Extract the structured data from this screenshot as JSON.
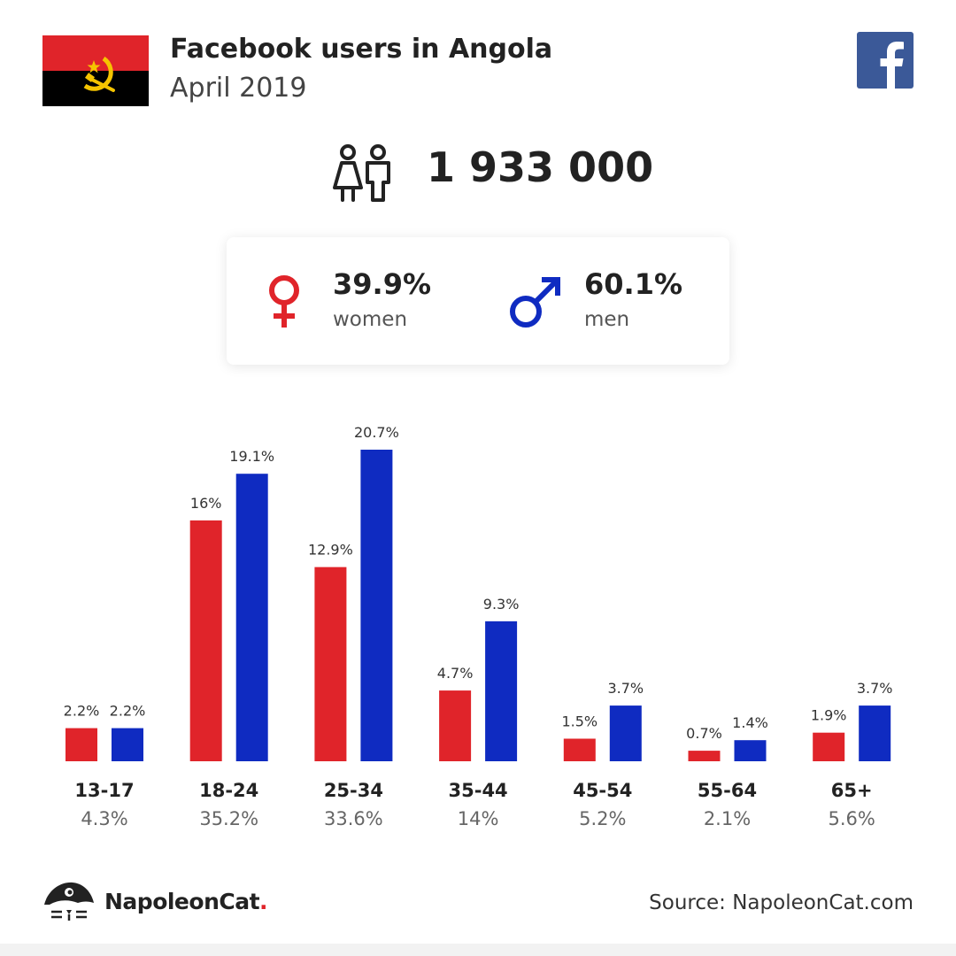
{
  "header": {
    "title": "Facebook users in Angola",
    "subtitle": "April 2019"
  },
  "total": "1 933 000",
  "gender": {
    "women_pct": "39.9%",
    "women_label": "women",
    "men_pct": "60.1%",
    "men_label": "men"
  },
  "colors": {
    "women": "#e0242a",
    "men": "#0f2bc1",
    "facebook": "#3b5998",
    "flag_red": "#e0242a",
    "flag_black": "#000000",
    "flag_emblem": "#f5c400"
  },
  "icons": [
    "angola-flag",
    "facebook-icon",
    "people-icon",
    "female-icon",
    "male-icon",
    "napoleoncat-logo-icon"
  ],
  "chart_data": {
    "type": "bar",
    "categories": [
      "13-17",
      "18-24",
      "25-34",
      "35-44",
      "45-54",
      "55-64",
      "65+"
    ],
    "category_totals": [
      "4.3%",
      "35.2%",
      "33.6%",
      "14%",
      "5.2%",
      "2.1%",
      "5.6%"
    ],
    "series": [
      {
        "name": "women",
        "values": [
          2.2,
          16,
          12.9,
          4.7,
          1.5,
          0.7,
          1.9
        ],
        "labels": [
          "2.2%",
          "16%",
          "12.9%",
          "4.7%",
          "1.5%",
          "0.7%",
          "1.9%"
        ],
        "color": "#e0242a"
      },
      {
        "name": "men",
        "values": [
          2.2,
          19.1,
          20.7,
          9.3,
          3.7,
          1.4,
          3.7
        ],
        "labels": [
          "2.2%",
          "19.1%",
          "20.7%",
          "9.3%",
          "3.7%",
          "1.4%",
          "3.7%"
        ],
        "color": "#0f2bc1"
      }
    ],
    "ylim": [
      0,
      20.7
    ]
  },
  "footer": {
    "logo_text": "NapoleonCat",
    "logo_dot": ".",
    "source": "Source: NapoleonCat.com"
  }
}
